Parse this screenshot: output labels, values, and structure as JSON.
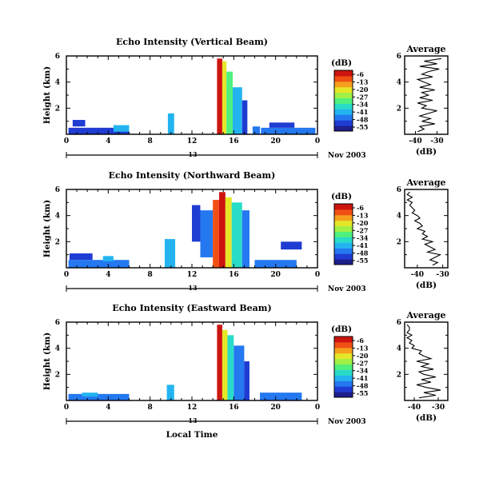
{
  "figure": {
    "xlabel": "Local Time",
    "date_label": "Nov 2003",
    "day_label": "13",
    "colorbar_unit": "(dB)",
    "colorbar_ticks": [
      "-6",
      "-13",
      "-20",
      "-27",
      "-34",
      "-41",
      "-48",
      "-55"
    ],
    "colorscale": [
      "#1e1e8c",
      "#1f3cd2",
      "#2478f0",
      "#23b4f0",
      "#28dcc8",
      "#50f07e",
      "#a0f046",
      "#e6e628",
      "#f5a01e",
      "#f05014",
      "#cd140f"
    ]
  },
  "chart_data": [
    {
      "type": "heatmap",
      "title": "Echo Intensity (Vertical Beam)",
      "ylabel": "Height (km)",
      "x_ticks": [
        "0",
        "4",
        "8",
        "12",
        "16",
        "20",
        "0"
      ],
      "y_ticks": [
        "2",
        "4",
        "6"
      ],
      "xlim": [
        0,
        24
      ],
      "ylim": [
        0,
        6
      ],
      "cbar_range": [
        -55,
        -6
      ],
      "cells": [
        {
          "x": [
            0.2,
            6.0
          ],
          "y": [
            0.0,
            0.5
          ],
          "v": -48
        },
        {
          "x": [
            0.6,
            1.8
          ],
          "y": [
            0.6,
            1.1
          ],
          "v": -50
        },
        {
          "x": [
            4.5,
            6.0
          ],
          "y": [
            0.2,
            0.7
          ],
          "v": -41
        },
        {
          "x": [
            9.7,
            10.3
          ],
          "y": [
            0.0,
            1.6
          ],
          "v": -38
        },
        {
          "x": [
            14.4,
            14.9
          ],
          "y": [
            0.0,
            5.8
          ],
          "v": -8
        },
        {
          "x": [
            14.9,
            15.3
          ],
          "y": [
            0.0,
            5.6
          ],
          "v": -20
        },
        {
          "x": [
            15.3,
            15.9
          ],
          "y": [
            0.0,
            4.8
          ],
          "v": -32
        },
        {
          "x": [
            15.9,
            16.8
          ],
          "y": [
            0.0,
            3.6
          ],
          "v": -42
        },
        {
          "x": [
            16.8,
            17.3
          ],
          "y": [
            0.0,
            2.6
          ],
          "v": -49
        },
        {
          "x": [
            17.8,
            18.5
          ],
          "y": [
            0.0,
            0.6
          ],
          "v": -47
        },
        {
          "x": [
            18.6,
            23.8
          ],
          "y": [
            0.0,
            0.5
          ],
          "v": -46
        },
        {
          "x": [
            19.4,
            21.8
          ],
          "y": [
            0.5,
            0.9
          ],
          "v": -50
        }
      ],
      "profile": {
        "title": "Average",
        "xlabel": "(dB)",
        "x_ticks": [
          "-40",
          "-30"
        ],
        "y_ticks": [
          "2",
          "4",
          "6"
        ],
        "xlim": [
          -45,
          -25
        ],
        "ylim": [
          0,
          6
        ],
        "height": [
          0.2,
          0.4,
          0.6,
          0.8,
          1.0,
          1.2,
          1.4,
          1.6,
          1.8,
          2.0,
          2.2,
          2.4,
          2.6,
          2.8,
          3.0,
          3.2,
          3.4,
          3.6,
          3.8,
          4.0,
          4.2,
          4.4,
          4.6,
          4.8,
          5.0,
          5.2,
          5.4,
          5.6,
          5.8
        ],
        "value": [
          -39,
          -36,
          -38,
          -31,
          -37,
          -33,
          -38,
          -34,
          -30,
          -37,
          -35,
          -39,
          -32,
          -38,
          -34,
          -37,
          -31,
          -38,
          -33,
          -36,
          -39,
          -32,
          -37,
          -34,
          -29,
          -38,
          -30,
          -36,
          -28
        ]
      }
    },
    {
      "type": "heatmap",
      "title": "Echo Intensity (Northward Beam)",
      "ylabel": "Height (km)",
      "x_ticks": [
        "0",
        "4",
        "8",
        "12",
        "16",
        "20",
        "0"
      ],
      "y_ticks": [
        "2",
        "4",
        "6"
      ],
      "xlim": [
        0,
        24
      ],
      "ylim": [
        0,
        6
      ],
      "cbar_range": [
        -55,
        -6
      ],
      "cells": [
        {
          "x": [
            0.2,
            6.0
          ],
          "y": [
            0.0,
            0.6
          ],
          "v": -47
        },
        {
          "x": [
            0.3,
            2.5
          ],
          "y": [
            0.6,
            1.1
          ],
          "v": -50
        },
        {
          "x": [
            3.5,
            4.5
          ],
          "y": [
            0.5,
            0.9
          ],
          "v": -40
        },
        {
          "x": [
            9.4,
            10.4
          ],
          "y": [
            0.0,
            2.2
          ],
          "v": -42
        },
        {
          "x": [
            12.0,
            12.8
          ],
          "y": [
            2.0,
            4.8
          ],
          "v": -50
        },
        {
          "x": [
            12.8,
            14.0
          ],
          "y": [
            0.8,
            4.4
          ],
          "v": -44
        },
        {
          "x": [
            14.0,
            14.6
          ],
          "y": [
            0.0,
            5.2
          ],
          "v": -12
        },
        {
          "x": [
            14.6,
            15.2
          ],
          "y": [
            0.0,
            5.8
          ],
          "v": -6
        },
        {
          "x": [
            15.2,
            15.8
          ],
          "y": [
            0.0,
            5.4
          ],
          "v": -22
        },
        {
          "x": [
            15.8,
            16.8
          ],
          "y": [
            0.0,
            5.0
          ],
          "v": -36
        },
        {
          "x": [
            16.8,
            17.5
          ],
          "y": [
            0.0,
            4.4
          ],
          "v": -47
        },
        {
          "x": [
            18.0,
            22.0
          ],
          "y": [
            0.0,
            0.6
          ],
          "v": -46
        },
        {
          "x": [
            20.5,
            22.5
          ],
          "y": [
            1.4,
            2.0
          ],
          "v": -50
        }
      ],
      "profile": {
        "title": "Average",
        "xlabel": "(dB)",
        "x_ticks": [
          "-40",
          "-30"
        ],
        "y_ticks": [
          "2",
          "4",
          "6"
        ],
        "xlim": [
          -45,
          -28
        ],
        "ylim": [
          0,
          6
        ],
        "height": [
          0.2,
          0.4,
          0.6,
          0.8,
          1.0,
          1.2,
          1.4,
          1.6,
          1.8,
          2.0,
          2.2,
          2.4,
          2.6,
          2.8,
          3.0,
          3.2,
          3.4,
          3.6,
          3.8,
          4.0,
          4.2,
          4.4,
          4.6,
          4.8,
          5.0,
          5.2,
          5.4,
          5.6,
          5.8
        ],
        "value": [
          -34,
          -32,
          -35,
          -33,
          -31,
          -36,
          -33,
          -35,
          -37,
          -34,
          -38,
          -36,
          -38,
          -37,
          -40,
          -38,
          -39,
          -41,
          -39,
          -40,
          -42,
          -41,
          -42,
          -43,
          -42,
          -44,
          -42,
          -44,
          -43
        ]
      }
    },
    {
      "type": "heatmap",
      "title": "Echo Intensity (Eastward Beam)",
      "ylabel": "Height (km)",
      "x_ticks": [
        "0",
        "4",
        "8",
        "12",
        "16",
        "20",
        "0"
      ],
      "y_ticks": [
        "2",
        "4",
        "6"
      ],
      "xlim": [
        0,
        24
      ],
      "ylim": [
        0,
        6
      ],
      "cbar_range": [
        -55,
        -6
      ],
      "cells": [
        {
          "x": [
            0.2,
            6.0
          ],
          "y": [
            0.0,
            0.5
          ],
          "v": -46
        },
        {
          "x": [
            1.5,
            3.0
          ],
          "y": [
            0.3,
            0.6
          ],
          "v": -40
        },
        {
          "x": [
            9.6,
            10.3
          ],
          "y": [
            0.0,
            1.2
          ],
          "v": -38
        },
        {
          "x": [
            14.4,
            14.9
          ],
          "y": [
            0.0,
            5.8
          ],
          "v": -8
        },
        {
          "x": [
            14.9,
            15.4
          ],
          "y": [
            0.0,
            5.4
          ],
          "v": -22
        },
        {
          "x": [
            15.4,
            16.0
          ],
          "y": [
            0.0,
            5.0
          ],
          "v": -34
        },
        {
          "x": [
            16.0,
            17.0
          ],
          "y": [
            0.0,
            4.2
          ],
          "v": -44
        },
        {
          "x": [
            17.0,
            17.5
          ],
          "y": [
            0.0,
            3.0
          ],
          "v": -50
        },
        {
          "x": [
            18.5,
            22.5
          ],
          "y": [
            0.0,
            0.6
          ],
          "v": -46
        }
      ],
      "profile": {
        "title": "Average",
        "xlabel": "(dB)",
        "x_ticks": [
          "-40",
          "-30"
        ],
        "y_ticks": [
          "2",
          "4",
          "6"
        ],
        "xlim": [
          -44,
          -26
        ],
        "ylim": [
          0,
          6
        ],
        "height": [
          0.2,
          0.4,
          0.6,
          0.8,
          1.0,
          1.2,
          1.4,
          1.6,
          1.8,
          2.0,
          2.2,
          2.4,
          2.6,
          2.8,
          3.0,
          3.2,
          3.4,
          3.6,
          3.8,
          4.0,
          4.2,
          4.4,
          4.6,
          4.8,
          5.0,
          5.2,
          5.4,
          5.6,
          5.8
        ],
        "value": [
          -38,
          -31,
          -36,
          -29,
          -35,
          -39,
          -33,
          -37,
          -31,
          -36,
          -38,
          -32,
          -37,
          -34,
          -39,
          -33,
          -36,
          -38,
          -37,
          -41,
          -40,
          -42,
          -41,
          -43,
          -41,
          -43,
          -42,
          -42,
          -43
        ]
      }
    }
  ]
}
